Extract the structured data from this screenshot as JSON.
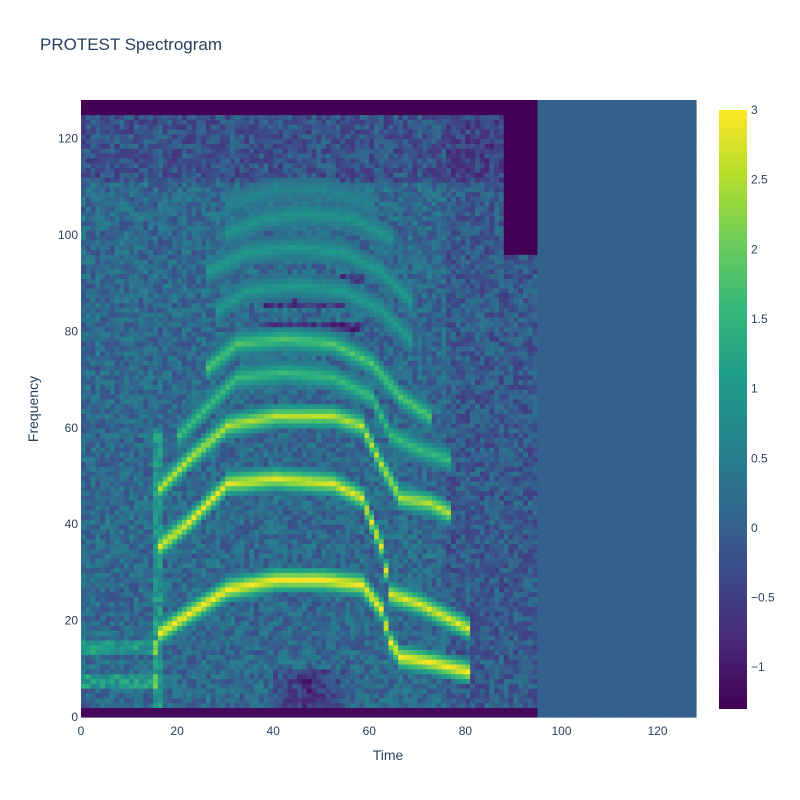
{
  "chart_data": {
    "type": "heatmap",
    "title": "PROTEST Spectrogram",
    "xlabel": "Time",
    "ylabel": "Frequency",
    "xlim": [
      0,
      128
    ],
    "ylim": [
      0,
      128
    ],
    "x_ticks": [
      "0",
      "20",
      "40",
      "60",
      "80",
      "100",
      "120"
    ],
    "y_ticks": [
      "0",
      "20",
      "40",
      "60",
      "80",
      "100",
      "120"
    ],
    "colorbar": {
      "colorscale": "viridis",
      "range": [
        -1.3,
        3
      ],
      "ticks": [
        "3",
        "2.5",
        "2",
        "1.5",
        "1",
        "0.5",
        "0",
        "−0.5",
        "−1"
      ],
      "tick_values": [
        3,
        2.5,
        2,
        1.5,
        1,
        0.5,
        0,
        -0.5,
        -1
      ]
    },
    "grid": false,
    "legend": "none",
    "z_shape": [
      128,
      128
    ],
    "silent_from_time": 95,
    "silent_fill_value": 0,
    "formant_tracks": [
      {
        "points": [
          [
            16,
            17
          ],
          [
            22,
            21
          ],
          [
            30,
            26
          ],
          [
            40,
            28
          ],
          [
            50,
            28
          ],
          [
            58,
            27
          ],
          [
            62,
            22
          ],
          [
            64,
            15
          ],
          [
            66,
            12
          ],
          [
            72,
            11
          ],
          [
            80,
            9
          ]
        ],
        "strength": 3.0
      },
      {
        "points": [
          [
            16,
            35
          ],
          [
            22,
            40
          ],
          [
            30,
            48
          ],
          [
            40,
            49
          ],
          [
            52,
            48
          ],
          [
            58,
            45
          ],
          [
            62,
            35
          ],
          [
            64,
            25
          ],
          [
            70,
            23
          ],
          [
            76,
            20
          ],
          [
            80,
            18
          ]
        ],
        "strength": 2.8
      },
      {
        "points": [
          [
            16,
            47
          ],
          [
            22,
            53
          ],
          [
            30,
            60
          ],
          [
            40,
            62
          ],
          [
            52,
            62
          ],
          [
            58,
            60
          ],
          [
            62,
            52
          ],
          [
            66,
            45
          ],
          [
            72,
            44
          ],
          [
            76,
            42
          ]
        ],
        "strength": 2.5
      },
      {
        "points": [
          [
            20,
            58
          ],
          [
            26,
            64
          ],
          [
            32,
            70
          ],
          [
            42,
            71
          ],
          [
            52,
            70
          ],
          [
            60,
            66
          ],
          [
            64,
            58
          ],
          [
            70,
            55
          ],
          [
            76,
            53
          ]
        ],
        "strength": 1.6
      },
      {
        "points": [
          [
            26,
            72
          ],
          [
            32,
            77
          ],
          [
            42,
            78
          ],
          [
            52,
            77
          ],
          [
            60,
            73
          ],
          [
            66,
            66
          ],
          [
            72,
            62
          ]
        ],
        "strength": 1.8
      },
      {
        "points": [
          [
            28,
            84
          ],
          [
            34,
            88
          ],
          [
            44,
            89
          ],
          [
            54,
            88
          ],
          [
            62,
            84
          ],
          [
            68,
            78
          ]
        ],
        "strength": 1.0
      },
      {
        "points": [
          [
            26,
            92
          ],
          [
            34,
            96
          ],
          [
            44,
            97
          ],
          [
            54,
            96
          ],
          [
            62,
            92
          ],
          [
            68,
            86
          ]
        ],
        "strength": 1.0
      },
      {
        "points": [
          [
            30,
            100
          ],
          [
            38,
            103
          ],
          [
            46,
            104
          ],
          [
            56,
            103
          ],
          [
            64,
            99
          ]
        ],
        "strength": 0.9
      },
      {
        "points": [
          [
            30,
            106
          ],
          [
            40,
            109
          ],
          [
            50,
            109
          ],
          [
            60,
            106
          ]
        ],
        "strength": 0.6
      }
    ]
  }
}
